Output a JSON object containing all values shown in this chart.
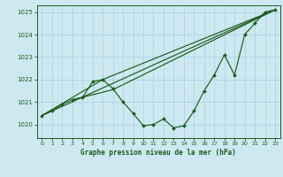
{
  "bg_color": "#cde8f0",
  "grid_color": "#b0d8e8",
  "line_color": "#1a5c1a",
  "marker_color": "#1a5c1a",
  "xlabel": "Graphe pression niveau de la mer (hPa)",
  "xlim": [
    -0.5,
    23.5
  ],
  "ylim": [
    1019.4,
    1025.3
  ],
  "yticks": [
    1020,
    1021,
    1022,
    1023,
    1024,
    1025
  ],
  "xticks": [
    0,
    1,
    2,
    3,
    4,
    5,
    6,
    7,
    8,
    9,
    10,
    11,
    12,
    13,
    14,
    15,
    16,
    17,
    18,
    19,
    20,
    21,
    22,
    23
  ],
  "main_line": {
    "x": [
      0,
      1,
      2,
      3,
      4,
      5,
      6,
      7,
      8,
      9,
      10,
      11,
      12,
      13,
      14,
      15,
      16,
      17,
      18,
      19,
      20,
      21,
      22,
      23
    ],
    "y": [
      1020.4,
      1020.6,
      1020.9,
      1021.1,
      1021.2,
      1021.9,
      1022.0,
      1021.6,
      1021.0,
      1020.5,
      1019.95,
      1020.0,
      1020.25,
      1019.85,
      1019.95,
      1020.6,
      1021.5,
      1022.2,
      1023.1,
      1022.2,
      1024.0,
      1024.5,
      1025.0,
      1025.1
    ]
  },
  "forecast_lines": [
    {
      "x": [
        0,
        23
      ],
      "y": [
        1020.4,
        1025.1
      ]
    },
    {
      "x": [
        0,
        6,
        23
      ],
      "y": [
        1020.4,
        1022.0,
        1025.1
      ]
    },
    {
      "x": [
        3,
        7,
        23
      ],
      "y": [
        1021.1,
        1021.55,
        1025.1
      ]
    }
  ],
  "xlabel_fontsize": 5.5,
  "tick_fontsize": 5.0
}
